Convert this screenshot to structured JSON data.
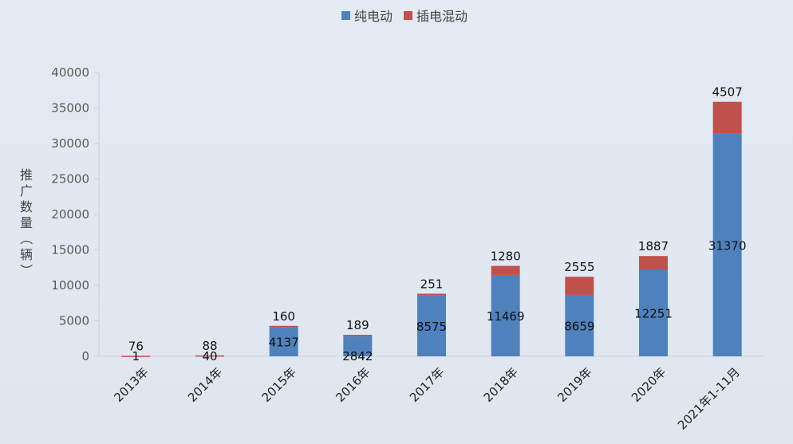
{
  "chart_data": {
    "type": "bar",
    "stacked": true,
    "categories": [
      "2013年",
      "2014年",
      "2015年",
      "2016年",
      "2017年",
      "2018年",
      "2019年",
      "2020年",
      "2021年1-11月"
    ],
    "series": [
      {
        "name": "纯电动",
        "values": [
          1,
          40,
          4137,
          2842,
          8575,
          11469,
          8659,
          12251,
          31370
        ],
        "color": "#4f81bd"
      },
      {
        "name": "插电混动",
        "values": [
          76,
          88,
          160,
          189,
          251,
          1280,
          2555,
          1887,
          4507
        ],
        "color": "#c0504d"
      }
    ],
    "ylabel": "推广数量（辆）",
    "ylim": [
      0,
      40000
    ],
    "yticks": [
      0,
      5000,
      10000,
      15000,
      20000,
      25000,
      30000,
      35000,
      40000
    ],
    "legend": "top",
    "grid": "vertical"
  }
}
